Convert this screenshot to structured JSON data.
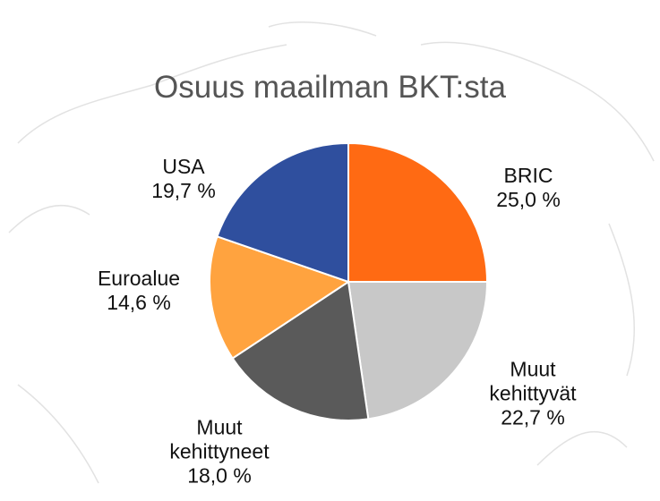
{
  "chart_data": {
    "type": "pie",
    "title": "Osuus maailman BKT:sta",
    "categories": [
      "BRIC",
      "Muut kehittyvät",
      "Muut kehittyneet",
      "Euroalue",
      "USA"
    ],
    "values": [
      25.0,
      22.7,
      18.0,
      14.6,
      19.7
    ],
    "value_labels": [
      "25,0 %",
      "22,7 %",
      "18,0 %",
      "14,6 %",
      "19,7 %"
    ],
    "colors": [
      "#ff6a13",
      "#c8c8c8",
      "#5a5a5a",
      "#ffa33f",
      "#2f4f9e"
    ]
  }
}
